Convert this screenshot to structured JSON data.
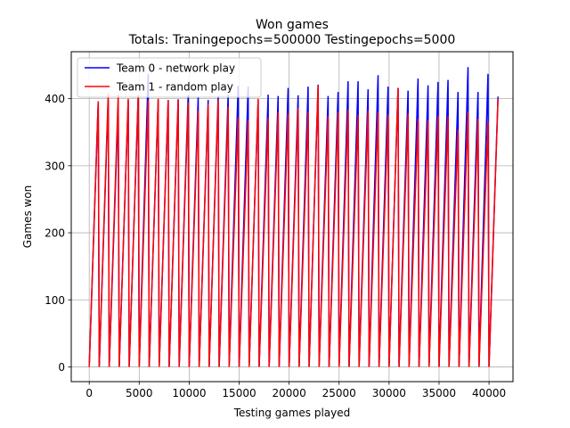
{
  "chart_data": {
    "type": "line",
    "title": "Won games",
    "subtitle": "Totals: Traningepochs=500000 Testingepochs=5000",
    "xlabel": "Testing games played",
    "ylabel": "Games won",
    "xlim": [
      -1800,
      42400
    ],
    "ylim": [
      -22,
      470
    ],
    "xticks": [
      0,
      5000,
      10000,
      15000,
      20000,
      25000,
      30000,
      35000,
      40000
    ],
    "xtick_labels": [
      "0",
      "5000",
      "10000",
      "15000",
      "20000",
      "25000",
      "30000",
      "35000",
      "40000"
    ],
    "yticks": [
      0,
      100,
      200,
      300,
      400
    ],
    "ytick_labels": [
      "0",
      "100",
      "200",
      "300",
      "400"
    ],
    "grid": true,
    "legend_position": "top-left",
    "cycle_length": 1000,
    "series": [
      {
        "name": "Team 0 - network play",
        "color": "#0000ff",
        "cycle_peaks": [
          396,
          398,
          389,
          397,
          405,
          437,
          398,
          398,
          399,
          405,
          402,
          398,
          404,
          406,
          419,
          418,
          398,
          406,
          404,
          416,
          405,
          418,
          421,
          404,
          410,
          426,
          426,
          414,
          435,
          418,
          416,
          412,
          430,
          420,
          425,
          428,
          410,
          447,
          410,
          437,
          403
        ]
      },
      {
        "name": "Team 1 - random play",
        "color": "#ff0000",
        "cycle_peaks": [
          396,
          408,
          406,
          400,
          404,
          398,
          400,
          398,
          398,
          394,
          382,
          392,
          398,
          388,
          372,
          368,
          400,
          372,
          380,
          378,
          386,
          380,
          420,
          374,
          380,
          384,
          376,
          382,
          380,
          376,
          416,
          378,
          370,
          368,
          374,
          374,
          354,
          380,
          370,
          366,
          400
        ]
      }
    ]
  }
}
